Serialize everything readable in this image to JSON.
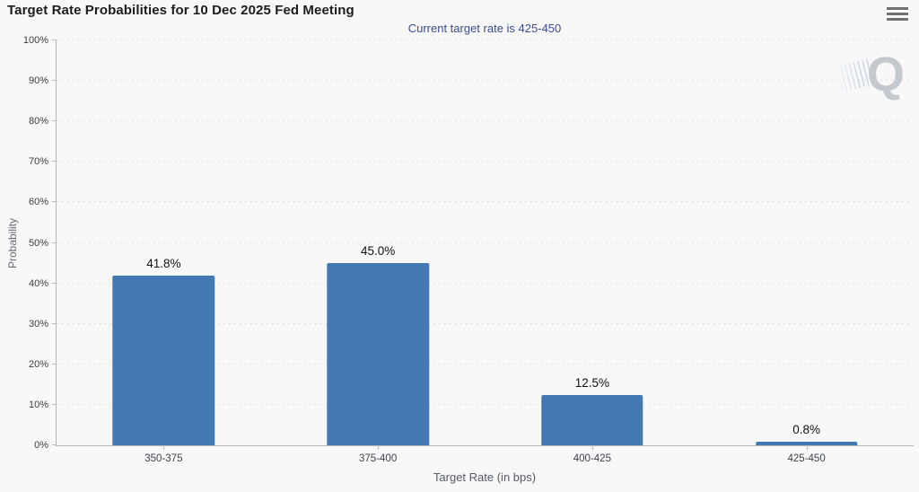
{
  "header": {
    "title": "Target Rate Probabilities for 10 Dec 2025 Fed Meeting",
    "subtitle": "Current target rate is 425-450",
    "menu_icon": "hamburger-icon"
  },
  "colors": {
    "background": "#f8f8f8",
    "bar": "#4379b2",
    "subtitle_text": "#3d4b90",
    "title_text": "#1c1c1c",
    "grid": "#d7d7d7",
    "axis": "#b6b6b6",
    "tick_text": "#3d3d3d",
    "watermark": "#c5c8cd"
  },
  "chart_data": {
    "type": "bar",
    "title": "Target Rate Probabilities for 10 Dec 2025 Fed Meeting",
    "subtitle": "Current target rate is 425-450",
    "categories": [
      "350-375",
      "375-400",
      "400-425",
      "425-450"
    ],
    "values": [
      41.8,
      45.0,
      12.5,
      0.8
    ],
    "value_labels": [
      "41.8%",
      "45.0%",
      "12.5%",
      "0.8%"
    ],
    "xlabel": "Target Rate (in bps)",
    "ylabel": "Probability",
    "ylim": [
      0,
      100
    ],
    "ytick_step": 10,
    "ytick_labels": [
      "0%",
      "10%",
      "20%",
      "30%",
      "40%",
      "50%",
      "60%",
      "70%",
      "80%",
      "90%",
      "100%"
    ],
    "grid": "horizontal-dotted",
    "legend": "none"
  },
  "watermark": {
    "letter": "Q"
  }
}
